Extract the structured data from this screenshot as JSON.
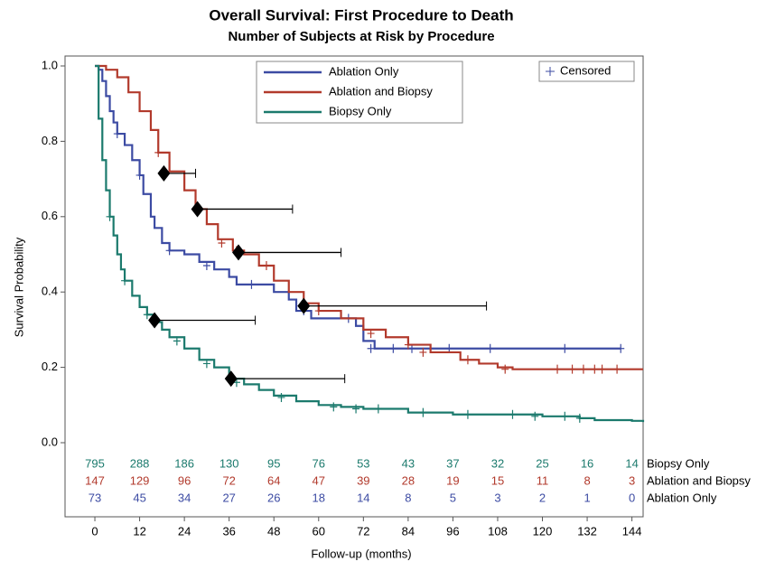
{
  "chart_data": {
    "type": "km",
    "title": "Overall Survival: First Procedure to Death",
    "subtitle": "Number of Subjects at Risk by Procedure",
    "x_label": "Follow-up (months)",
    "y_label": "Survival Probability",
    "xlim": [
      -8,
      147
    ],
    "ylim": [
      0,
      1
    ],
    "xticks": [
      0,
      12,
      24,
      36,
      48,
      60,
      72,
      84,
      96,
      108,
      120,
      132,
      144
    ],
    "yticks": [
      {
        "value": 0,
        "label": "0.0"
      },
      0.2,
      0.4,
      0.6,
      0.8,
      {
        "value": 1,
        "label": "1.0"
      }
    ],
    "censored_label": "Censored",
    "series": [
      {
        "name": "Ablation Only",
        "color": "#3c4ba3",
        "x": [
          0,
          1,
          2,
          3,
          4,
          5,
          6,
          8,
          10,
          12,
          13,
          15,
          16,
          18,
          20,
          24,
          28,
          32,
          36,
          38,
          48,
          52,
          54,
          58,
          70,
          72,
          75,
          141
        ],
        "values": [
          1,
          0.99,
          0.96,
          0.92,
          0.88,
          0.85,
          0.82,
          0.79,
          0.75,
          0.71,
          0.66,
          0.6,
          0.57,
          0.53,
          0.51,
          0.5,
          0.48,
          0.46,
          0.44,
          0.42,
          0.4,
          0.38,
          0.35,
          0.33,
          0.31,
          0.27,
          0.25,
          0.25
        ],
        "censored_x": [
          6,
          12,
          20,
          30,
          42,
          56,
          68,
          74,
          80,
          85,
          95,
          106,
          126,
          141
        ],
        "censored_values": [
          0.82,
          0.71,
          0.51,
          0.47,
          0.42,
          0.35,
          0.33,
          0.25,
          0.25,
          0.25,
          0.25,
          0.25,
          0.25,
          0.25
        ]
      },
      {
        "name": "Ablation and Biopsy",
        "color": "#b23a2c",
        "x": [
          0,
          3,
          6,
          9,
          12,
          15,
          17,
          20,
          24,
          27,
          30,
          33,
          37,
          40,
          44,
          48,
          52,
          56,
          60,
          66,
          72,
          78,
          84,
          90,
          98,
          103,
          108,
          112,
          147
        ],
        "values": [
          1,
          0.99,
          0.97,
          0.93,
          0.88,
          0.83,
          0.77,
          0.72,
          0.67,
          0.62,
          0.58,
          0.54,
          0.51,
          0.5,
          0.47,
          0.43,
          0.4,
          0.37,
          0.35,
          0.33,
          0.3,
          0.28,
          0.26,
          0.24,
          0.22,
          0.21,
          0.2,
          0.195,
          0.195
        ],
        "censored_x": [
          17,
          34,
          38,
          46,
          60,
          74,
          84,
          88,
          100,
          110,
          124,
          128,
          131,
          134,
          136,
          140
        ],
        "censored_values": [
          0.77,
          0.53,
          0.51,
          0.47,
          0.35,
          0.29,
          0.26,
          0.24,
          0.22,
          0.195,
          0.195,
          0.195,
          0.195,
          0.195,
          0.195,
          0.195
        ]
      },
      {
        "name": "Biopsy Only",
        "color": "#1b7a6d",
        "x": [
          0,
          1,
          2,
          3,
          4,
          5,
          6,
          7,
          8,
          10,
          12,
          14,
          16,
          18,
          20,
          24,
          28,
          32,
          36,
          40,
          44,
          48,
          54,
          60,
          66,
          72,
          84,
          96,
          120,
          130,
          134,
          144,
          147
        ],
        "values": [
          1,
          0.86,
          0.75,
          0.67,
          0.6,
          0.55,
          0.5,
          0.46,
          0.43,
          0.39,
          0.36,
          0.34,
          0.32,
          0.3,
          0.28,
          0.25,
          0.22,
          0.2,
          0.17,
          0.155,
          0.14,
          0.125,
          0.11,
          0.1,
          0.095,
          0.09,
          0.08,
          0.075,
          0.07,
          0.065,
          0.06,
          0.058,
          0.055
        ],
        "censored_x": [
          4,
          8,
          14,
          22,
          30,
          38,
          50,
          64,
          70,
          76,
          88,
          100,
          112,
          118,
          126,
          130
        ],
        "censored_values": [
          0.6,
          0.43,
          0.34,
          0.27,
          0.21,
          0.16,
          0.12,
          0.095,
          0.09,
          0.09,
          0.08,
          0.075,
          0.075,
          0.07,
          0.07,
          0.065
        ]
      }
    ],
    "markers": {
      "x": [
        18.5,
        27.5,
        38.5,
        56,
        16,
        36.5
      ],
      "values": [
        0.715,
        0.62,
        0.505,
        0.363,
        0.325,
        0.17
      ],
      "upper": [
        27,
        53,
        66,
        105,
        43,
        67
      ]
    },
    "at_risk": [
      {
        "name": "Biopsy Only",
        "color": "#1b7a6d",
        "counts": [
          795,
          288,
          186,
          130,
          95,
          76,
          53,
          43,
          37,
          32,
          25,
          16,
          14
        ]
      },
      {
        "name": "Ablation and Biopsy",
        "color": "#b23a2c",
        "counts": [
          147,
          129,
          96,
          72,
          64,
          47,
          39,
          28,
          19,
          15,
          11,
          8,
          3
        ]
      },
      {
        "name": "Ablation Only",
        "color": "#3c4ba3",
        "counts": [
          73,
          45,
          34,
          27,
          26,
          18,
          14,
          8,
          5,
          3,
          2,
          1,
          0
        ]
      }
    ]
  }
}
